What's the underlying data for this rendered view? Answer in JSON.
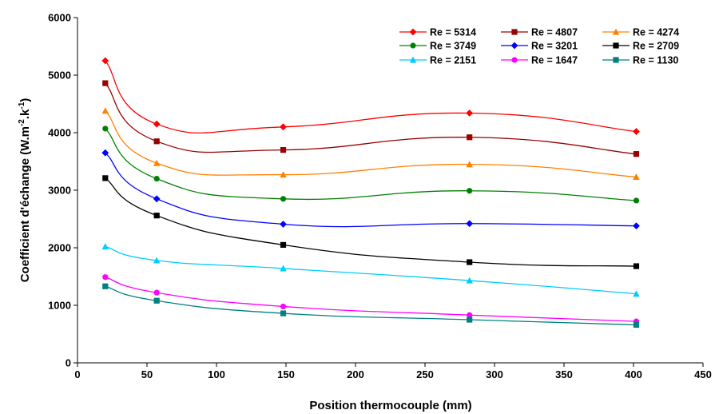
{
  "chart_data": {
    "type": "line",
    "xlabel": "Position thermocouple (mm)",
    "ylabel": {
      "prefix": "Coefficient d'échange (W.m",
      "sup1": "-2",
      "mid": ".k",
      "sup2": "-1",
      "suffix": ")"
    },
    "xlim": [
      0,
      450
    ],
    "ylim": [
      0,
      6000
    ],
    "xticks": [
      "0",
      "50",
      "100",
      "150",
      "200",
      "250",
      "300",
      "350",
      "400",
      "450"
    ],
    "yticks": [
      "0",
      "1000",
      "2000",
      "3000",
      "4000",
      "5000",
      "6000"
    ],
    "grid": false,
    "legend_position": "top-right",
    "x": [
      20,
      57,
      148,
      282,
      402
    ],
    "series": [
      {
        "name": "Re = 5314",
        "color": "#ff0000",
        "marker": "diamond",
        "values": [
          5250,
          4150,
          4100,
          4340,
          4020
        ]
      },
      {
        "name": "Re = 4807",
        "color": "#990000",
        "marker": "square",
        "values": [
          4860,
          3850,
          3700,
          3920,
          3630
        ]
      },
      {
        "name": "Re = 4274",
        "color": "#ff8000",
        "marker": "triangle",
        "values": [
          4380,
          3470,
          3270,
          3450,
          3230
        ]
      },
      {
        "name": "Re = 3749",
        "color": "#008000",
        "marker": "circle",
        "values": [
          4070,
          3200,
          2850,
          2990,
          2820
        ]
      },
      {
        "name": "Re = 3201",
        "color": "#0000ff",
        "marker": "diamond",
        "values": [
          3650,
          2850,
          2410,
          2420,
          2380
        ]
      },
      {
        "name": "Re = 2709",
        "color": "#000000",
        "marker": "square",
        "values": [
          3210,
          2560,
          2050,
          1750,
          1680
        ]
      },
      {
        "name": "Re = 2151",
        "color": "#00ccff",
        "marker": "triangle",
        "values": [
          2020,
          1780,
          1640,
          1430,
          1200
        ]
      },
      {
        "name": "Re = 1647",
        "color": "#ff00ff",
        "marker": "circle",
        "values": [
          1490,
          1220,
          980,
          830,
          720
        ]
      },
      {
        "name": "Re = 1130",
        "color": "#008080",
        "marker": "square",
        "values": [
          1330,
          1080,
          860,
          750,
          660
        ]
      }
    ]
  }
}
